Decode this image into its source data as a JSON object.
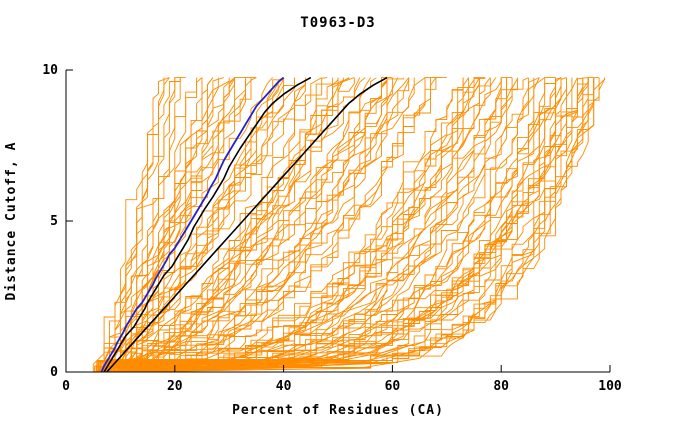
{
  "chart_data": {
    "type": "line",
    "title": "T0963-D3",
    "xlabel": "Percent of Residues (CA)",
    "ylabel": "Distance Cutoff, A",
    "xlim": [
      0,
      100
    ],
    "ylim": [
      0,
      10
    ],
    "xticks": [
      0,
      20,
      40,
      60,
      80,
      100
    ],
    "yticks": [
      0,
      5,
      10
    ],
    "grid": false,
    "legend": null,
    "axis_color": "#000000",
    "background_color": "#ffffff",
    "series": [
      {
        "name": "highlighted-model-black-steep",
        "color": "#000000",
        "width": 1.6,
        "points": [
          [
            7,
            0
          ],
          [
            8,
            0.3
          ],
          [
            9,
            0.6
          ],
          [
            10,
            0.9
          ],
          [
            11,
            1.2
          ],
          [
            12.5,
            1.5
          ],
          [
            13.5,
            1.8
          ],
          [
            14.5,
            2.1
          ],
          [
            15,
            2.3
          ],
          [
            16,
            2.6
          ],
          [
            17,
            2.9
          ],
          [
            18,
            3.2
          ],
          [
            19.5,
            3.5
          ],
          [
            20.5,
            3.8
          ],
          [
            21.5,
            4.1
          ],
          [
            22.5,
            4.4
          ],
          [
            23.5,
            4.8
          ],
          [
            24.5,
            5.1
          ],
          [
            25.5,
            5.4
          ],
          [
            27,
            5.8
          ],
          [
            28,
            6.1
          ],
          [
            29,
            6.4
          ],
          [
            30,
            6.8
          ],
          [
            31,
            7.1
          ],
          [
            32,
            7.4
          ],
          [
            33.5,
            7.8
          ],
          [
            35,
            8.2
          ],
          [
            36.5,
            8.6
          ],
          [
            38,
            8.9
          ],
          [
            40,
            9.2
          ],
          [
            42.5,
            9.5
          ],
          [
            45,
            9.75
          ]
        ]
      },
      {
        "name": "highlighted-model-black-shallow",
        "color": "#000000",
        "width": 1.6,
        "points": [
          [
            7.5,
            0
          ],
          [
            9,
            0.3
          ],
          [
            10.5,
            0.6
          ],
          [
            12,
            0.9
          ],
          [
            14,
            1.3
          ],
          [
            16,
            1.7
          ],
          [
            18,
            2.1
          ],
          [
            20,
            2.5
          ],
          [
            22,
            2.9
          ],
          [
            24,
            3.3
          ],
          [
            26,
            3.7
          ],
          [
            28,
            4.1
          ],
          [
            30,
            4.5
          ],
          [
            32,
            4.9
          ],
          [
            34,
            5.3
          ],
          [
            36,
            5.7
          ],
          [
            38,
            6.1
          ],
          [
            40,
            6.5
          ],
          [
            42,
            6.9
          ],
          [
            44,
            7.3
          ],
          [
            46,
            7.7
          ],
          [
            48,
            8.1
          ],
          [
            50,
            8.5
          ],
          [
            52,
            8.9
          ],
          [
            54,
            9.2
          ],
          [
            56.5,
            9.5
          ],
          [
            59,
            9.75
          ]
        ]
      },
      {
        "name": "highlighted-model-blue",
        "color": "#2222cc",
        "width": 1.8,
        "points": [
          [
            6.5,
            0
          ],
          [
            7,
            0.2
          ],
          [
            8,
            0.5
          ],
          [
            9,
            0.8
          ],
          [
            9.5,
            1.0
          ],
          [
            10.5,
            1.3
          ],
          [
            11,
            1.5
          ],
          [
            12,
            1.8
          ],
          [
            13,
            2.1
          ],
          [
            14,
            2.3
          ],
          [
            15,
            2.6
          ],
          [
            16,
            2.9
          ],
          [
            16.5,
            3.1
          ],
          [
            17.5,
            3.4
          ],
          [
            18.5,
            3.7
          ],
          [
            19,
            3.9
          ],
          [
            20,
            4.1
          ],
          [
            21,
            4.4
          ],
          [
            22,
            4.7
          ],
          [
            23,
            5.0
          ],
          [
            24,
            5.3
          ],
          [
            25,
            5.6
          ],
          [
            26,
            5.9
          ],
          [
            26.5,
            6.1
          ],
          [
            27.5,
            6.4
          ],
          [
            28.5,
            6.8
          ],
          [
            29,
            7.0
          ],
          [
            30,
            7.3
          ],
          [
            31,
            7.6
          ],
          [
            32,
            7.9
          ],
          [
            33,
            8.2
          ],
          [
            34,
            8.5
          ],
          [
            35,
            8.8
          ],
          [
            36,
            9.0
          ],
          [
            37.5,
            9.3
          ],
          [
            39,
            9.6
          ],
          [
            40,
            9.75
          ]
        ]
      }
    ],
    "ensemble": {
      "name": "server-model-curves",
      "color": "#ff8c00",
      "width": 0.9,
      "approx_count": 120,
      "seed": 9,
      "x_start_range": [
        5,
        13
      ],
      "x_end_range": [
        16,
        100
      ],
      "y_max": 9.75
    }
  }
}
